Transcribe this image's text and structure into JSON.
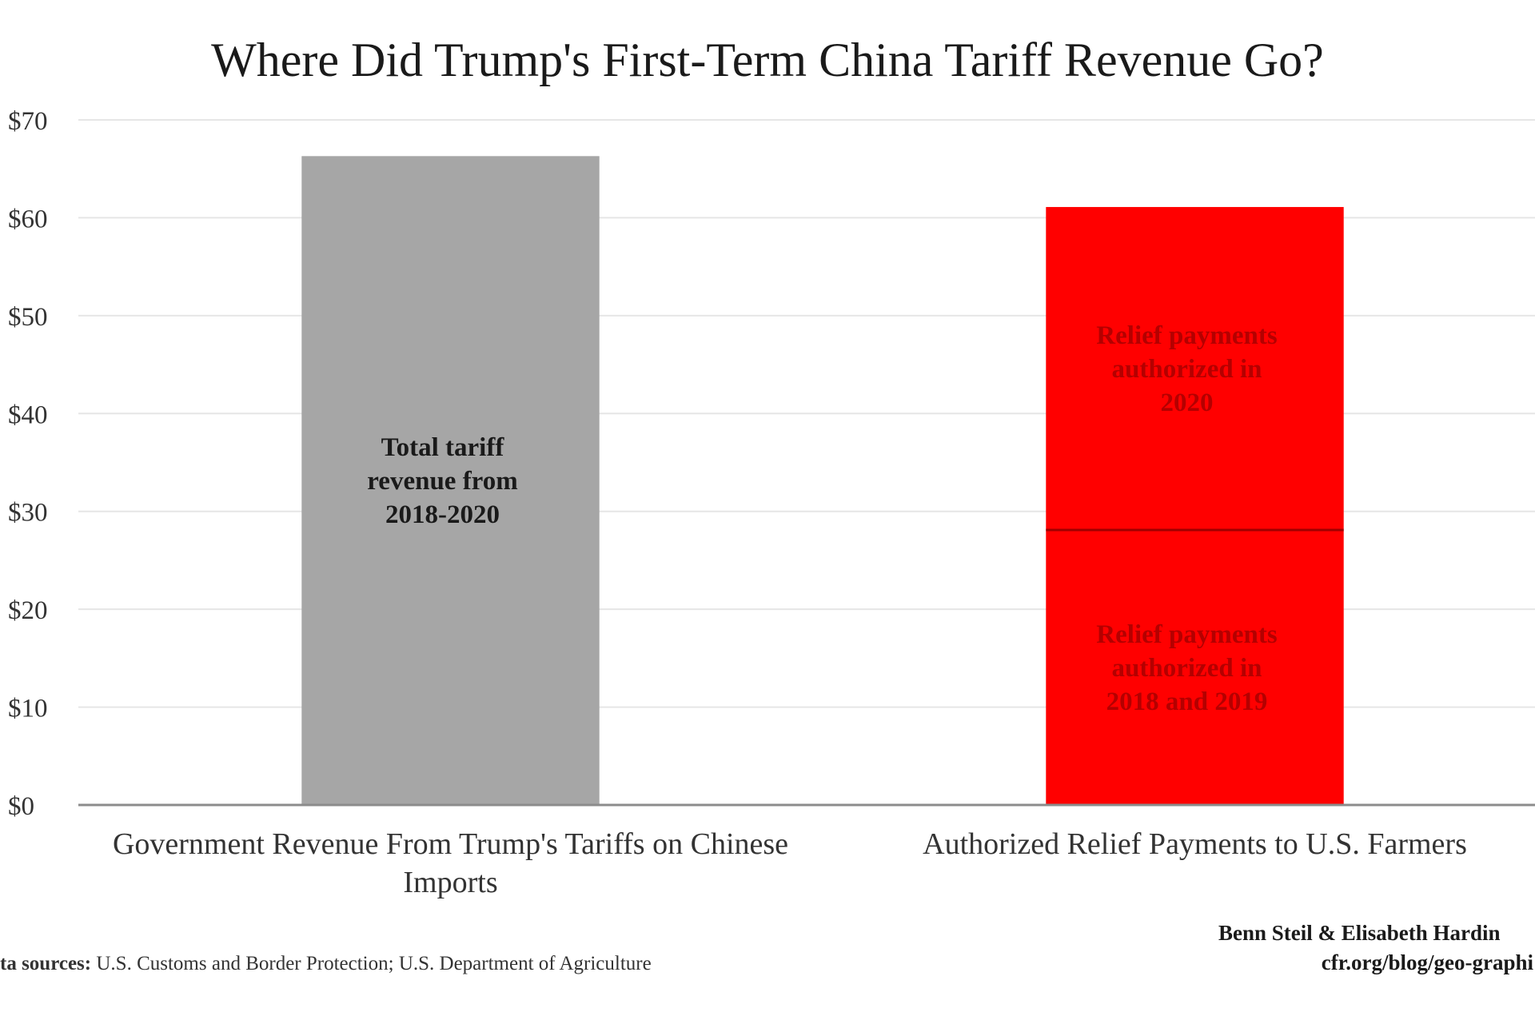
{
  "chart_data": {
    "type": "bar",
    "title": "Where Did Trump's First-Term China Tariff Revenue Go?",
    "xlabel": "",
    "ylabel": "",
    "ylim": [
      0,
      70
    ],
    "ytick_step": 10,
    "ytick_prefix": "$",
    "grid": true,
    "categories": [
      [
        "Government Revenue From Trump's Tariffs on Chinese",
        "Imports"
      ],
      [
        "Authorized Relief Payments to U.S. Farmers"
      ]
    ],
    "bars": [
      {
        "category_index": 0,
        "segments": [
          {
            "value": 66.3,
            "color": "#a6a6a6",
            "label_color": "#1a1a1a",
            "label": [
              "Total tariff",
              "revenue from",
              "2018-2020"
            ]
          }
        ]
      },
      {
        "category_index": 1,
        "segments": [
          {
            "value": 28.1,
            "color": "#ff0000",
            "label_color": "#b40000",
            "label": [
              "Relief payments",
              "authorized in",
              "2018 and 2019"
            ]
          },
          {
            "value": 33.0,
            "color": "#ff0000",
            "label_color": "#b40000",
            "label": [
              "Relief payments",
              "authorized in",
              "2020"
            ]
          }
        ]
      }
    ],
    "colors": {
      "grid": "#e6e6e6",
      "axis": "#8c8c8c",
      "segment_divider": "#a00000"
    }
  },
  "footer": {
    "sources_label": "ta sources:",
    "sources_text": " U.S. Customs and Border Protection; U.S. Department of Agriculture",
    "credit_authors": "Benn Steil & Elisabeth Hardin",
    "credit_url": "cfr.org/blog/geo-graphi"
  }
}
